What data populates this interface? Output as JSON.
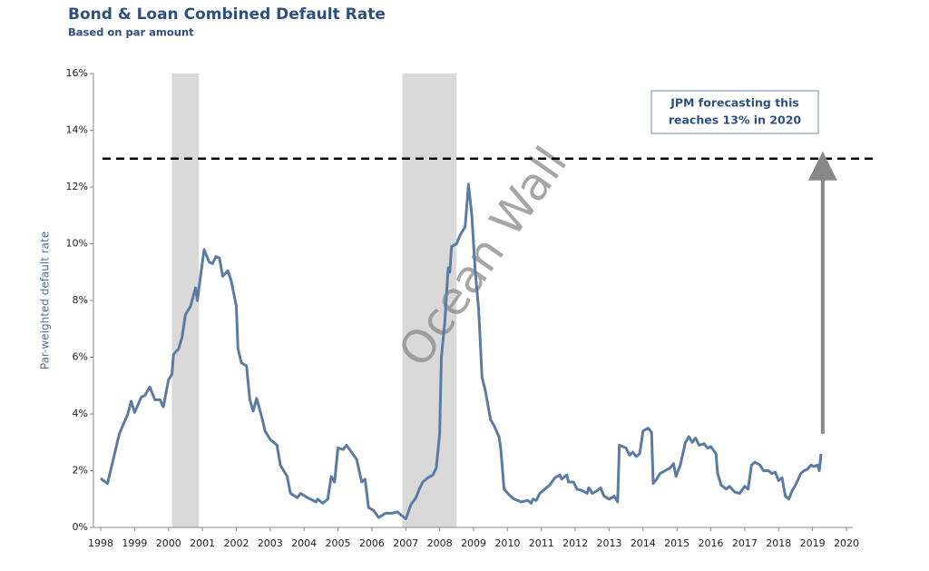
{
  "chart_data": {
    "type": "line",
    "title": "Bond & Loan Combined Default Rate",
    "subtitle": "Based on par amount",
    "y_label": "Par-weighted default rate",
    "watermark": "Ocean Wall",
    "annotation": [
      "JPM forecasting this",
      "reaches 13% in 2020"
    ],
    "color": "#5a7ca3",
    "reference_line": 13,
    "arrow": {
      "x": 2019.3,
      "from": 3.3,
      "to": 13
    },
    "shaded_ranges": [
      [
        2000.1,
        2000.9
      ],
      [
        2006.9,
        2008.5
      ]
    ],
    "x": [
      1998.0,
      1998.2,
      1998.35,
      1998.55,
      1998.8,
      1998.9,
      1999.0,
      1999.2,
      1999.3,
      1999.45,
      1999.6,
      1999.75,
      1999.85,
      2000.0,
      2000.1,
      2000.15,
      2000.3,
      2000.4,
      2000.5,
      2000.65,
      2000.8,
      2000.85,
      2001.05,
      2001.2,
      2001.3,
      2001.4,
      2001.5,
      2001.6,
      2001.75,
      2001.85,
      2002.0,
      2002.05,
      2002.15,
      2002.3,
      2002.4,
      2002.5,
      2002.6,
      2002.75,
      2002.85,
      2003.0,
      2003.2,
      2003.3,
      2003.5,
      2003.6,
      2003.8,
      2003.9,
      2004.1,
      2004.35,
      2004.4,
      2004.55,
      2004.7,
      2004.8,
      2004.9,
      2005.0,
      2005.15,
      2005.25,
      2005.4,
      2005.55,
      2005.7,
      2005.8,
      2005.9,
      2006.05,
      2006.2,
      2006.4,
      2006.6,
      2006.75,
      2006.9,
      2007.0,
      2007.15,
      2007.3,
      2007.4,
      2007.5,
      2007.65,
      2007.8,
      2007.9,
      2008.0,
      2008.05,
      2008.15,
      2008.25,
      2008.3,
      2008.35,
      2008.5,
      2008.6,
      2008.75,
      2008.85,
      2008.95,
      2009.05,
      2009.15,
      2009.25,
      2009.35,
      2009.5,
      2009.6,
      2009.75,
      2009.8,
      2009.9,
      2010.05,
      2010.2,
      2010.4,
      2010.6,
      2010.7,
      2010.75,
      2010.85,
      2010.95,
      2011.1,
      2011.25,
      2011.4,
      2011.55,
      2011.6,
      2011.75,
      2011.8,
      2011.95,
      2012.05,
      2012.2,
      2012.35,
      2012.4,
      2012.5,
      2012.65,
      2012.75,
      2012.85,
      2013.0,
      2013.15,
      2013.25,
      2013.3,
      2013.5,
      2013.6,
      2013.7,
      2013.8,
      2013.9,
      2014.0,
      2014.15,
      2014.25,
      2014.3,
      2014.4,
      2014.5,
      2014.65,
      2014.8,
      2014.9,
      2014.97,
      2015.1,
      2015.25,
      2015.35,
      2015.45,
      2015.55,
      2015.65,
      2015.8,
      2015.9,
      2016.0,
      2016.15,
      2016.2,
      2016.3,
      2016.45,
      2016.55,
      2016.7,
      2016.85,
      2017.0,
      2017.1,
      2017.2,
      2017.3,
      2017.45,
      2017.55,
      2017.7,
      2017.8,
      2017.9,
      2018.0,
      2018.1,
      2018.2,
      2018.3,
      2018.4,
      2018.5,
      2018.65,
      2018.75,
      2018.85,
      2018.95,
      2019.05,
      2019.15,
      2019.2,
      2019.25
    ],
    "values": [
      1.73,
      1.55,
      2.3,
      3.3,
      4.0,
      4.45,
      4.05,
      4.6,
      4.65,
      4.95,
      4.5,
      4.5,
      4.25,
      5.2,
      5.4,
      6.1,
      6.3,
      6.7,
      7.5,
      7.8,
      8.45,
      8.0,
      9.8,
      9.35,
      9.3,
      9.55,
      9.5,
      8.85,
      9.05,
      8.7,
      7.8,
      6.3,
      5.8,
      5.7,
      4.5,
      4.1,
      4.55,
      3.9,
      3.4,
      3.1,
      2.9,
      2.2,
      1.8,
      1.2,
      1.05,
      1.2,
      1.05,
      0.9,
      1.0,
      0.85,
      1.0,
      1.8,
      1.6,
      2.8,
      2.75,
      2.9,
      2.65,
      2.4,
      1.6,
      1.7,
      0.7,
      0.6,
      0.35,
      0.5,
      0.5,
      0.55,
      0.4,
      0.3,
      0.8,
      1.05,
      1.35,
      1.6,
      1.75,
      1.85,
      2.1,
      3.3,
      6.0,
      7.2,
      9.15,
      9.0,
      9.9,
      10.0,
      10.3,
      10.6,
      12.1,
      11.0,
      9.0,
      7.7,
      5.3,
      4.8,
      3.8,
      3.6,
      3.2,
      2.8,
      1.35,
      1.15,
      1.0,
      0.9,
      0.95,
      0.85,
      1.0,
      0.95,
      1.2,
      1.35,
      1.5,
      1.75,
      1.85,
      1.7,
      1.85,
      1.6,
      1.6,
      1.35,
      1.3,
      1.2,
      1.4,
      1.2,
      1.3,
      1.4,
      1.1,
      1.0,
      1.1,
      0.9,
      2.9,
      2.8,
      2.55,
      2.65,
      2.5,
      2.6,
      3.4,
      3.5,
      3.35,
      1.55,
      1.7,
      1.9,
      2.0,
      2.1,
      2.25,
      1.8,
      2.2,
      3.0,
      3.2,
      3.0,
      3.15,
      2.9,
      2.95,
      2.8,
      2.85,
      2.6,
      1.9,
      1.5,
      1.35,
      1.45,
      1.25,
      1.2,
      1.45,
      1.35,
      2.2,
      2.3,
      2.2,
      2.0,
      2.0,
      1.9,
      1.95,
      1.65,
      1.75,
      1.1,
      1.0,
      1.3,
      1.5,
      1.9,
      2.0,
      2.05,
      2.2,
      2.15,
      2.2,
      2.0,
      2.6
    ],
    "xlim": [
      1998,
      2020
    ],
    "xticks": [
      1998,
      1999,
      2000,
      2001,
      2002,
      2003,
      2004,
      2005,
      2006,
      2007,
      2008,
      2009,
      2010,
      2011,
      2012,
      2013,
      2014,
      2015,
      2016,
      2017,
      2018,
      2019,
      2020
    ],
    "ylim": [
      0,
      16
    ],
    "yticks": [
      {
        "value": 0,
        "label": "0%"
      },
      {
        "value": 2,
        "label": "2%"
      },
      {
        "value": 4,
        "label": "4%"
      },
      {
        "value": 6,
        "label": "6%"
      },
      {
        "value": 8,
        "label": "8%"
      },
      {
        "value": 10,
        "label": "10%"
      },
      {
        "value": 12,
        "label": "12%"
      },
      {
        "value": 14,
        "label": "14%"
      },
      {
        "value": 16,
        "label": "16%"
      }
    ]
  }
}
